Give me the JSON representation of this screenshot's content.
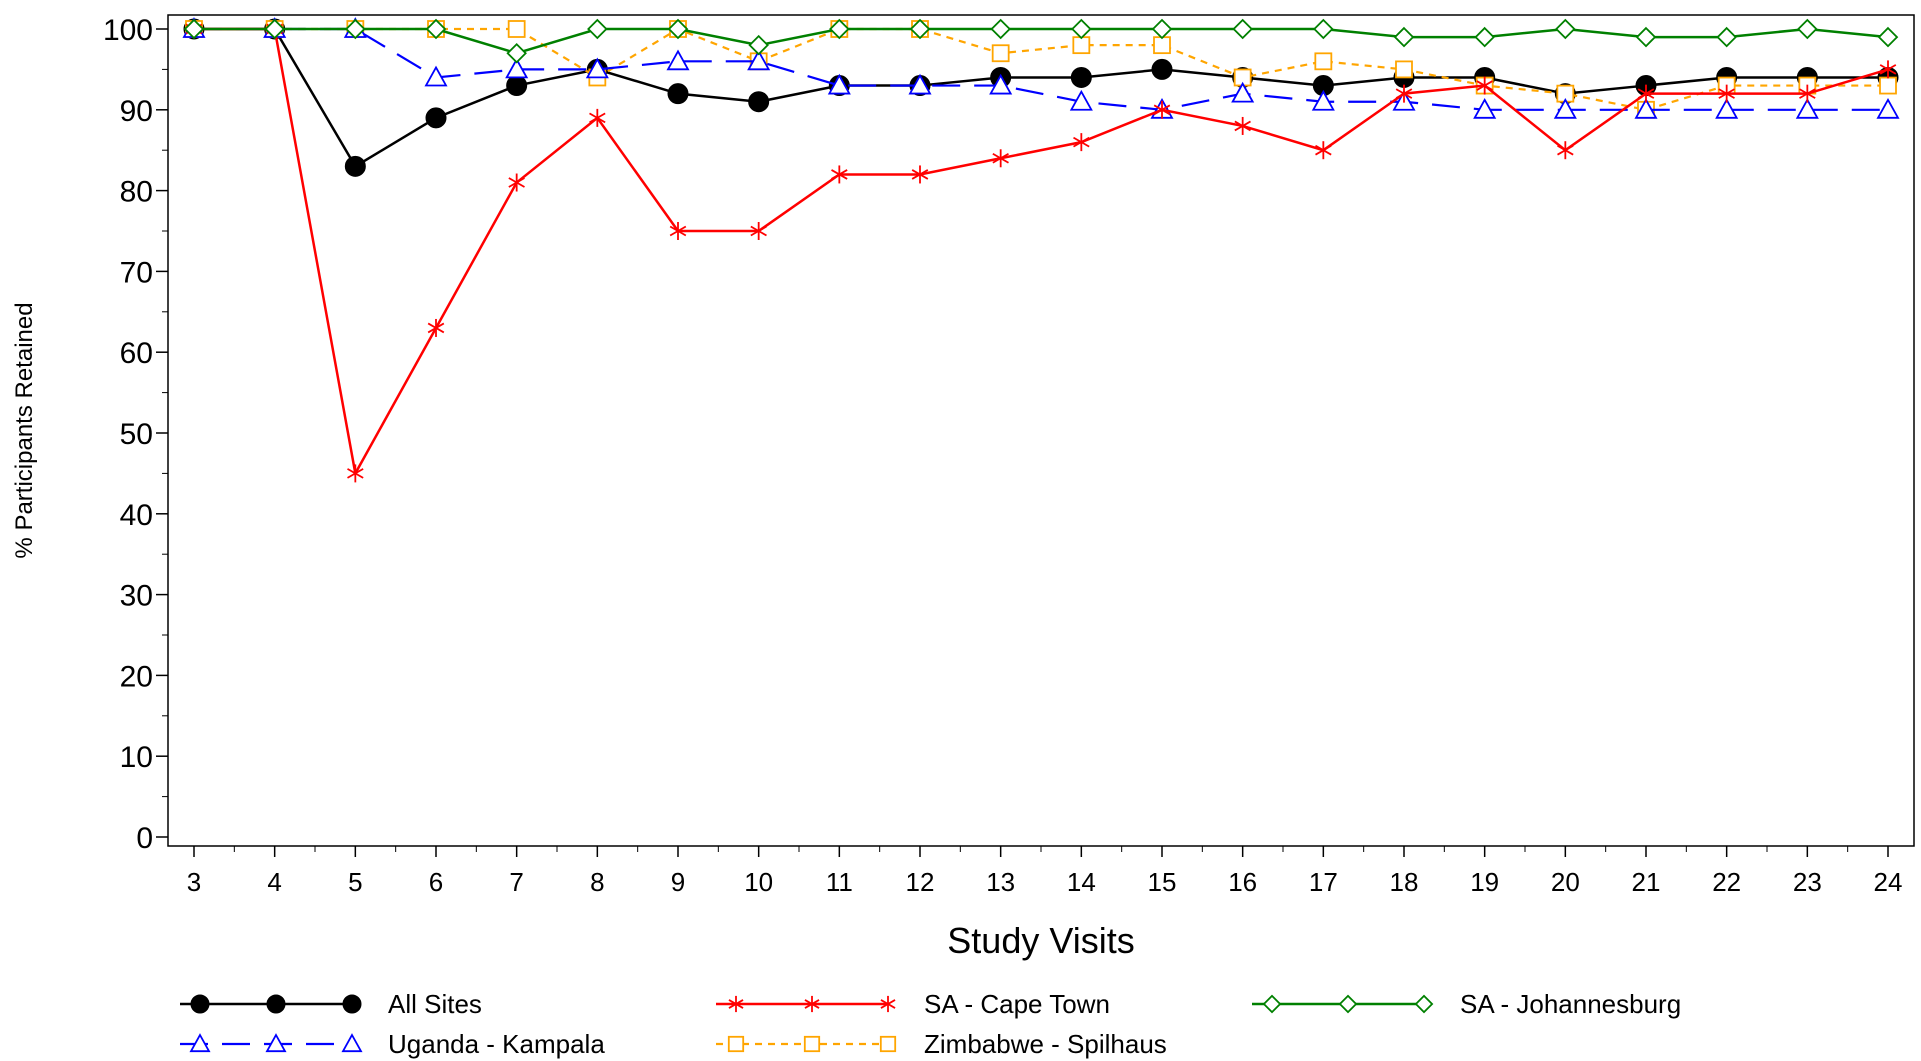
{
  "chart_data": {
    "type": "line",
    "xlabel": "Study Visits",
    "ylabel": "% Participants Retained",
    "ylim": [
      0,
      100
    ],
    "yticks": [
      0,
      10,
      20,
      30,
      40,
      50,
      60,
      70,
      80,
      90,
      100
    ],
    "grid": false,
    "legend_position": "bottom",
    "x": [
      3,
      4,
      5,
      6,
      7,
      8,
      9,
      10,
      11,
      12,
      13,
      14,
      15,
      16,
      17,
      18,
      19,
      20,
      21,
      22,
      23,
      24
    ],
    "series": [
      {
        "name": "All Sites",
        "color": "#000000",
        "marker": "filled-circle",
        "dash": "solid",
        "values": [
          100,
          100,
          83,
          89,
          93,
          95,
          92,
          91,
          93,
          93,
          94,
          94,
          95,
          94,
          93,
          94,
          94,
          92,
          93,
          94,
          94,
          94
        ]
      },
      {
        "name": "SA - Cape Town",
        "color": "#ff0000",
        "marker": "star",
        "dash": "solid",
        "values": [
          100,
          100,
          45,
          63,
          81,
          89,
          75,
          75,
          82,
          82,
          84,
          86,
          90,
          88,
          85,
          92,
          93,
          85,
          92,
          92,
          92,
          95
        ]
      },
      {
        "name": "SA - Johannesburg",
        "color": "#008000",
        "marker": "diamond",
        "dash": "solid",
        "values": [
          100,
          100,
          100,
          100,
          97,
          100,
          100,
          98,
          100,
          100,
          100,
          100,
          100,
          100,
          100,
          99,
          99,
          100,
          99,
          99,
          100,
          99
        ]
      },
      {
        "name": "Uganda - Kampala",
        "color": "#0000ff",
        "marker": "triangle",
        "dash": "long-dash",
        "values": [
          100,
          100,
          100,
          94,
          95,
          95,
          96,
          96,
          93,
          93,
          93,
          91,
          90,
          92,
          91,
          91,
          90,
          90,
          90,
          90,
          90,
          90
        ]
      },
      {
        "name": "Zimbabwe - Spilhaus",
        "color": "#ffa500",
        "marker": "square",
        "dash": "short-dash",
        "values": [
          100,
          100,
          100,
          100,
          100,
          94,
          100,
          96,
          100,
          100,
          97,
          98,
          98,
          94,
          96,
          95,
          93,
          92,
          90,
          93,
          93,
          93
        ]
      }
    ]
  }
}
